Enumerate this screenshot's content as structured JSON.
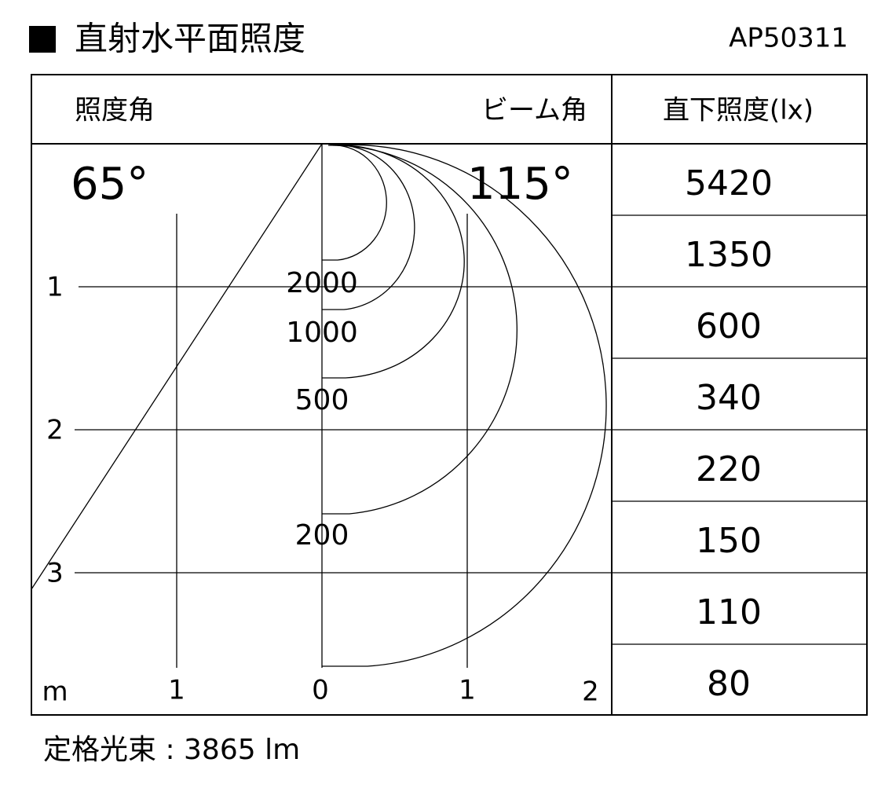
{
  "header": {
    "title": "直射水平面照度",
    "model": "AP50311"
  },
  "table": {
    "columns": [
      "照度角",
      "ビーム角",
      "直下照度(lx)"
    ],
    "angles": [
      "65°",
      "115°"
    ],
    "illuminance": [
      "5420",
      "1350",
      "600",
      "340",
      "220",
      "150",
      "110",
      "80"
    ]
  },
  "diagram": {
    "vertical_labels": [
      "1",
      "2",
      "3"
    ],
    "horizontal_unit": "m",
    "horizontal_labels": [
      "1",
      "0",
      "1",
      "2"
    ],
    "contour_labels": [
      "2000",
      "1000",
      "500",
      "200"
    ]
  },
  "footer": {
    "flux": "定格光束 : 3865 lm"
  }
}
